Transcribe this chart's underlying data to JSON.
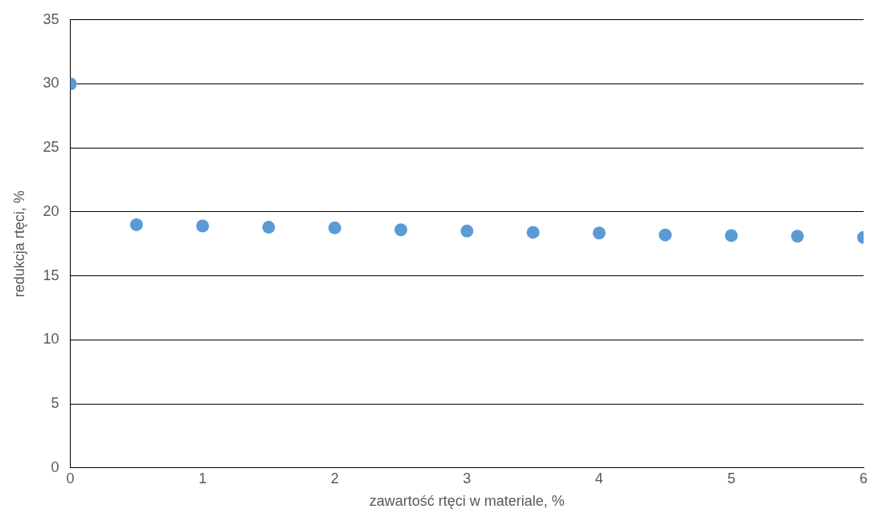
{
  "chart_data": {
    "type": "scatter",
    "xlabel": "zawartość rtęci w materiale, %",
    "ylabel": "redukcja rtęci, %",
    "x": [
      0,
      0.5,
      1,
      1.5,
      2,
      2.5,
      3,
      3.5,
      4,
      4.5,
      5,
      5.5,
      6
    ],
    "series": [
      {
        "color": "#5b9bd5",
        "values": [
          30,
          19,
          18.9,
          18.8,
          18.75,
          18.6,
          18.5,
          18.4,
          18.35,
          18.2,
          18.15,
          18.1,
          18
        ]
      }
    ],
    "xlim": [
      0,
      6
    ],
    "xticks": [
      0,
      1,
      2,
      3,
      4,
      5,
      6
    ],
    "ylim": [
      0,
      35
    ],
    "yticks": [
      0,
      5,
      10,
      15,
      20,
      25,
      30,
      35
    ],
    "grid": "y",
    "legend": false,
    "marker": "circle"
  }
}
